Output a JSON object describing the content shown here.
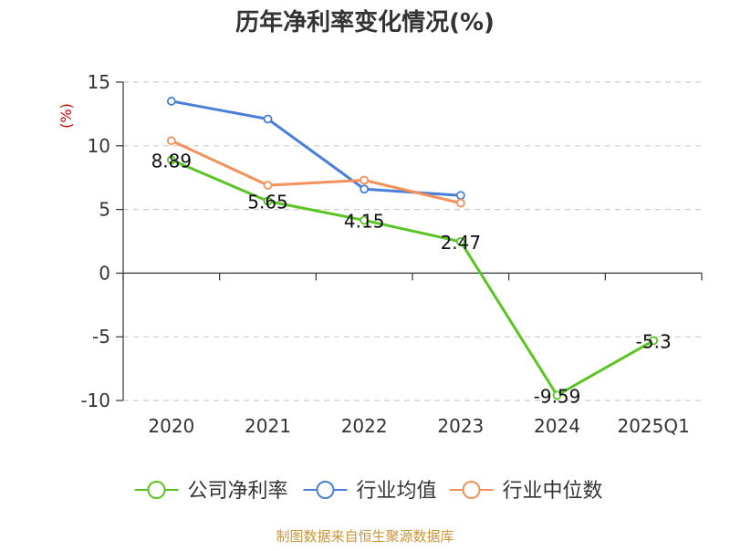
{
  "chart_data": {
    "type": "line",
    "title": "历年净利率变化情况(%)",
    "ylabel": "(%)",
    "categories": [
      "2020",
      "2021",
      "2022",
      "2023",
      "2024",
      "2025Q1"
    ],
    "ylim": [
      -10,
      15
    ],
    "yticks": [
      15,
      10,
      5,
      0,
      -5,
      -10
    ],
    "grid": true,
    "legend_position": "bottom",
    "series": [
      {
        "name": "公司净利率",
        "color": "#5bc424",
        "values": [
          8.89,
          5.65,
          4.15,
          2.47,
          -9.59,
          -5.3
        ],
        "labels": [
          "8.89",
          "5.65",
          "4.15",
          "2.47",
          "-9.59",
          "-5.3"
        ]
      },
      {
        "name": "行业均值",
        "color": "#4a7fd9",
        "values": [
          13.5,
          12.1,
          6.6,
          6.1,
          null,
          null
        ]
      },
      {
        "name": "行业中位数",
        "color": "#f4905a",
        "values": [
          10.4,
          6.9,
          7.3,
          5.5,
          null,
          null
        ]
      }
    ]
  },
  "footer": {
    "source": "制图数据来自恒生聚源数据库"
  },
  "colors": {
    "axis": "#333333",
    "grid": "#cccccc",
    "ylabel": "#cc0000",
    "footer": "#c8963c"
  }
}
